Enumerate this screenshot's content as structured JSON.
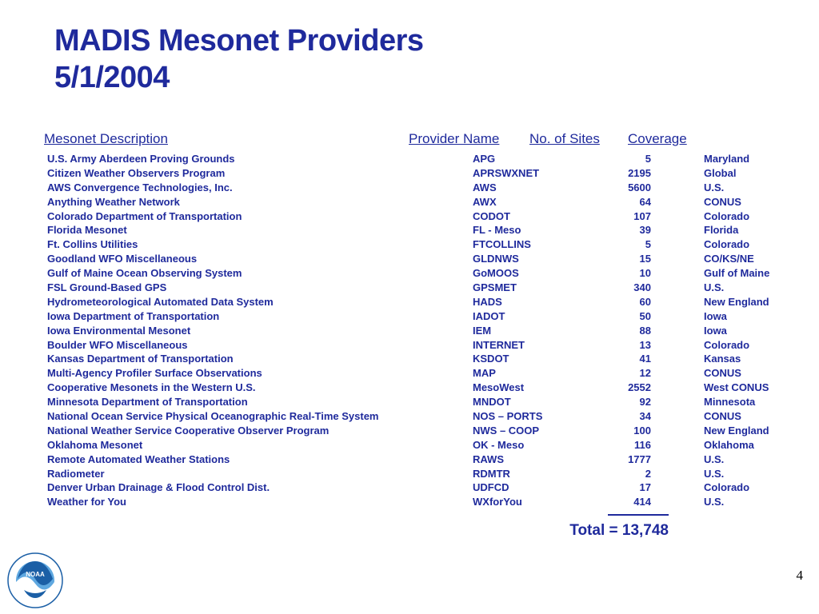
{
  "title": {
    "line1": "MADIS Mesonet Providers",
    "line2": "5/1/2004"
  },
  "headers": {
    "description": "Mesonet Description",
    "provider": "Provider Name",
    "sites": "No. of Sites",
    "coverage": "Coverage"
  },
  "rows": [
    {
      "description": "U.S. Army Aberdeen Proving Grounds",
      "provider": "APG",
      "sites": "5",
      "coverage": "Maryland"
    },
    {
      "description": "Citizen Weather Observers Program",
      "provider": "APRSWXNET",
      "sites": "2195",
      "coverage": "Global"
    },
    {
      "description": "AWS Convergence Technologies, Inc.",
      "provider": "AWS",
      "sites": "5600",
      "coverage": "U.S."
    },
    {
      "description": "Anything Weather Network",
      "provider": "AWX",
      "sites": "64",
      "coverage": "CONUS"
    },
    {
      "description": "Colorado Department of Transportation",
      "provider": "CODOT",
      "sites": "107",
      "coverage": "Colorado"
    },
    {
      "description": "Florida Mesonet",
      "provider": "FL - Meso",
      "sites": "39",
      "coverage": "Florida"
    },
    {
      "description": "Ft. Collins Utilities",
      "provider": "FTCOLLINS",
      "sites": "5",
      "coverage": "Colorado"
    },
    {
      "description": "Goodland WFO Miscellaneous",
      "provider": "GLDNWS",
      "sites": "15",
      "coverage": "CO/KS/NE"
    },
    {
      "description": "Gulf of Maine Ocean Observing System",
      "provider": "GoMOOS",
      "sites": "10",
      "coverage": "Gulf of Maine"
    },
    {
      "description": "FSL Ground-Based GPS",
      "provider": "GPSMET",
      "sites": "340",
      "coverage": "U.S."
    },
    {
      "description": "Hydrometeorological Automated Data System",
      "provider": "HADS",
      "sites": "60",
      "coverage": "New England"
    },
    {
      "description": "Iowa Department of Transportation",
      "provider": "IADOT",
      "sites": "50",
      "coverage": "Iowa"
    },
    {
      "description": "Iowa Environmental Mesonet",
      "provider": "IEM",
      "sites": "88",
      "coverage": "Iowa"
    },
    {
      "description": "Boulder WFO Miscellaneous",
      "provider": "INTERNET",
      "sites": "13",
      "coverage": "Colorado"
    },
    {
      "description": "Kansas Department of Transportation",
      "provider": "KSDOT",
      "sites": "41",
      "coverage": "Kansas"
    },
    {
      "description": "Multi-Agency Profiler Surface Observations",
      "provider": "MAP",
      "sites": "12",
      "coverage": "CONUS"
    },
    {
      "description": "Cooperative Mesonets in the Western U.S.",
      "provider": "MesoWest",
      "sites": "2552",
      "coverage": "West CONUS"
    },
    {
      "description": "Minnesota Department of Transportation",
      "provider": "MNDOT",
      "sites": "92",
      "coverage": "Minnesota"
    },
    {
      "description": "National Ocean Service Physical Oceanographic Real-Time System",
      "provider": "NOS – PORTS",
      "sites": "34",
      "coverage": "CONUS"
    },
    {
      "description": "National Weather Service Cooperative Observer Program",
      "provider": "NWS – COOP",
      "sites": "100",
      "coverage": "New England"
    },
    {
      "description": "Oklahoma Mesonet",
      "provider": "OK - Meso",
      "sites": "116",
      "coverage": "Oklahoma"
    },
    {
      "description": "Remote Automated Weather Stations",
      "provider": "RAWS",
      "sites": "1777",
      "coverage": "U.S."
    },
    {
      "description": "Radiometer",
      "provider": "RDMTR",
      "sites": "2",
      "coverage": "U.S."
    },
    {
      "description": "Denver Urban Drainage & Flood Control Dist.",
      "provider": "UDFCD",
      "sites": "17",
      "coverage": "Colorado"
    },
    {
      "description": "Weather for You",
      "provider": "WXforYou",
      "sites": "414",
      "coverage": "U.S."
    }
  ],
  "total": "Total = 13,748",
  "logo": {
    "icon": "noaa-logo-icon",
    "text": "NOAA"
  },
  "page_number": "4",
  "colors": {
    "text": "#1f2a9c",
    "logo_blue": "#1b5fa6",
    "logo_light": "#5fa8e0"
  }
}
